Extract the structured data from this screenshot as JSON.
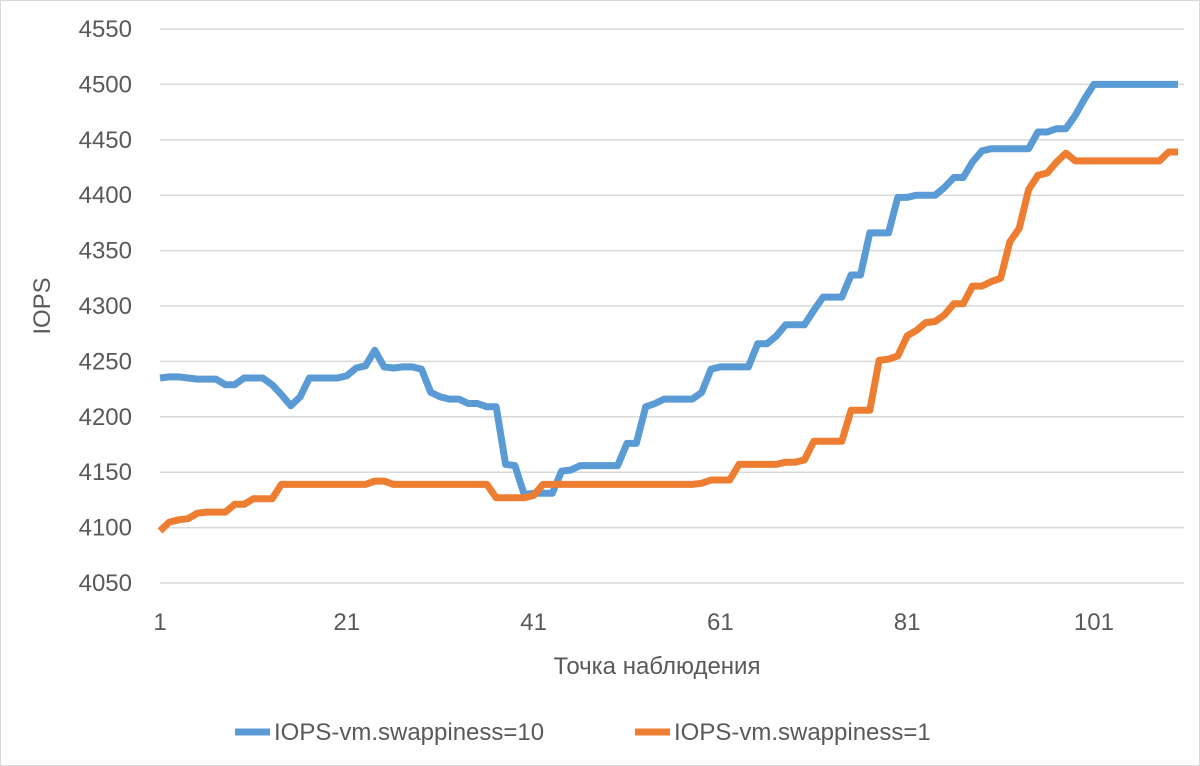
{
  "chart_data": {
    "type": "line",
    "title": "",
    "xlabel": "Точка наблюдения",
    "ylabel": "IOPS",
    "ylim": [
      4050,
      4550
    ],
    "yticks": [
      4050,
      4100,
      4150,
      4200,
      4250,
      4300,
      4350,
      4400,
      4450,
      4500,
      4550
    ],
    "xlim": [
      1,
      110
    ],
    "xticks": [
      1,
      21,
      41,
      61,
      81,
      101
    ],
    "grid": true,
    "legend": "bottom",
    "series": [
      {
        "name": "IOPS-vm.swappiness=10",
        "color": "#5B9BD5",
        "values": [
          4235,
          4236,
          4236,
          4235,
          4234,
          4234,
          4234,
          4229,
          4229,
          4235,
          4235,
          4235,
          4229,
          4220,
          4210,
          4218,
          4235,
          4235,
          4235,
          4235,
          4237,
          4244,
          4246,
          4260,
          4245,
          4244,
          4245,
          4245,
          4243,
          4222,
          4218,
          4216,
          4216,
          4212,
          4212,
          4209,
          4209,
          4157,
          4156,
          4130,
          4131,
          4131,
          4131,
          4151,
          4152,
          4156,
          4156,
          4156,
          4156,
          4156,
          4176,
          4176,
          4209,
          4212,
          4216,
          4216,
          4216,
          4216,
          4222,
          4243,
          4245,
          4245,
          4245,
          4245,
          4266,
          4266,
          4273,
          4283,
          4283,
          4283,
          4296,
          4308,
          4308,
          4308,
          4328,
          4328,
          4366,
          4366,
          4366,
          4398,
          4398,
          4400,
          4400,
          4400,
          4407,
          4416,
          4416,
          4430,
          4440,
          4442,
          4442,
          4442,
          4442,
          4442,
          4457,
          4457,
          4460,
          4460,
          4472,
          4487,
          4500,
          4500,
          4500,
          4500,
          4500,
          4500,
          4500,
          4500,
          4500,
          4500
        ]
      },
      {
        "name": "IOPS-vm.swappiness=1",
        "color": "#ED7D31",
        "values": [
          4097,
          4105,
          4107,
          4108,
          4113,
          4114,
          4114,
          4114,
          4121,
          4121,
          4126,
          4126,
          4126,
          4139,
          4139,
          4139,
          4139,
          4139,
          4139,
          4139,
          4139,
          4139,
          4139,
          4142,
          4142,
          4139,
          4139,
          4139,
          4139,
          4139,
          4139,
          4139,
          4139,
          4139,
          4139,
          4139,
          4127,
          4127,
          4127,
          4127,
          4129,
          4139,
          4139,
          4139,
          4139,
          4139,
          4139,
          4139,
          4139,
          4139,
          4139,
          4139,
          4139,
          4139,
          4139,
          4139,
          4139,
          4139,
          4140,
          4143,
          4143,
          4143,
          4157,
          4157,
          4157,
          4157,
          4157,
          4159,
          4159,
          4161,
          4178,
          4178,
          4178,
          4178,
          4206,
          4206,
          4206,
          4251,
          4252,
          4255,
          4273,
          4278,
          4285,
          4286,
          4292,
          4302,
          4302,
          4318,
          4318,
          4322,
          4325,
          4358,
          4370,
          4405,
          4418,
          4420,
          4430,
          4438,
          4431,
          4431,
          4431,
          4431,
          4431,
          4431,
          4431,
          4431,
          4431,
          4431,
          4439,
          4439
        ]
      }
    ]
  }
}
